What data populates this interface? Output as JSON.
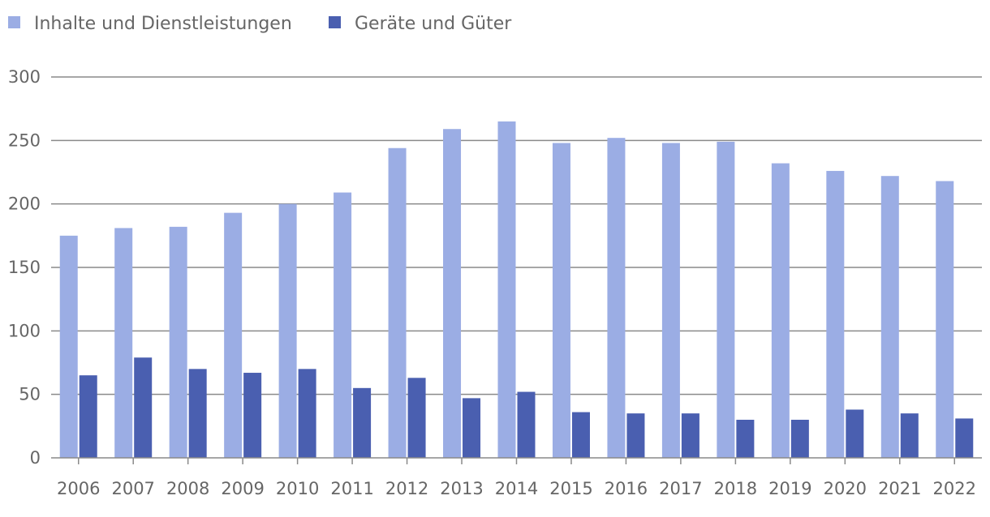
{
  "chart_data": {
    "type": "bar",
    "title": "",
    "xlabel": "",
    "ylabel": "",
    "ylim": [
      0,
      300
    ],
    "yticks": [
      0,
      50,
      100,
      150,
      200,
      250,
      300
    ],
    "grid": true,
    "legend_position": "top-left",
    "categories": [
      "2006",
      "2007",
      "2008",
      "2009",
      "2010",
      "2011",
      "2012",
      "2013",
      "2014",
      "2015",
      "2016",
      "2017",
      "2018",
      "2019",
      "2020",
      "2021",
      "2022"
    ],
    "series": [
      {
        "name": "Inhalte und Dienstleistungen",
        "color": "#9badE4",
        "values": [
          175,
          181,
          182,
          193,
          200,
          209,
          244,
          259,
          265,
          248,
          252,
          248,
          249,
          232,
          226,
          222,
          218
        ]
      },
      {
        "name": "Geräte und Güter",
        "color": "#4a5fb0",
        "values": [
          65,
          79,
          70,
          67,
          70,
          55,
          63,
          47,
          52,
          36,
          35,
          35,
          30,
          30,
          38,
          35,
          31
        ]
      }
    ]
  }
}
